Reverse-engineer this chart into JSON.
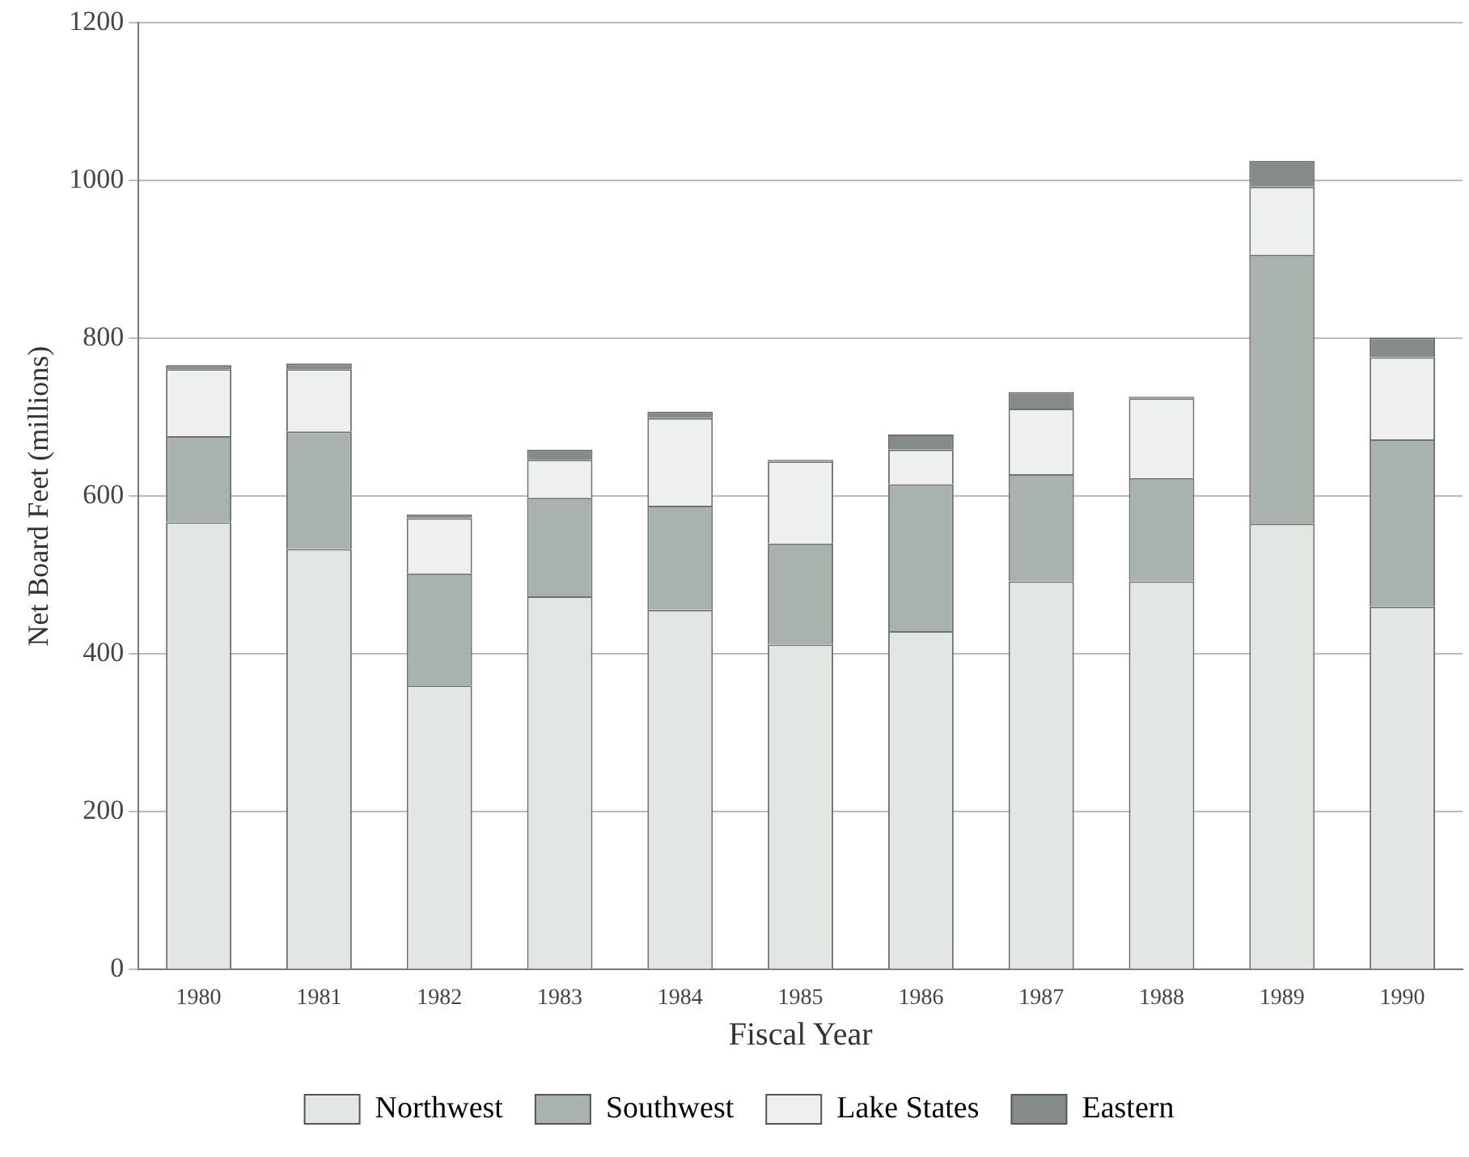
{
  "chart_data": {
    "type": "bar",
    "stacked": true,
    "xlabel": "Fiscal Year",
    "ylabel": "Net Board Feet (millions)",
    "categories": [
      "1980",
      "1981",
      "1982",
      "1983",
      "1984",
      "1985",
      "1986",
      "1987",
      "1988",
      "1989",
      "1990"
    ],
    "series": [
      {
        "name": "Northwest",
        "color": "#e3e7e4",
        "values": [
          567,
          533,
          360,
          473,
          456,
          412,
          429,
          492,
          492,
          565,
          460
        ]
      },
      {
        "name": "Southwest",
        "color": "#aab2ae",
        "values": [
          109,
          149,
          142,
          125,
          132,
          128,
          186,
          136,
          131,
          341,
          212
        ]
      },
      {
        "name": "Lake States",
        "color": "#edf0ee",
        "values": [
          85,
          79,
          70,
          48,
          111,
          104,
          44,
          83,
          101,
          86,
          104
        ]
      },
      {
        "name": "Eastern",
        "color": "#858b88",
        "values": [
          5,
          7,
          5,
          13,
          8,
          2,
          19,
          21,
          2,
          33,
          25
        ]
      }
    ],
    "ylim": [
      0,
      1200
    ],
    "yticks": [
      0,
      200,
      400,
      600,
      800,
      1000,
      1200
    ],
    "grid": "y",
    "legend": "bottom"
  }
}
